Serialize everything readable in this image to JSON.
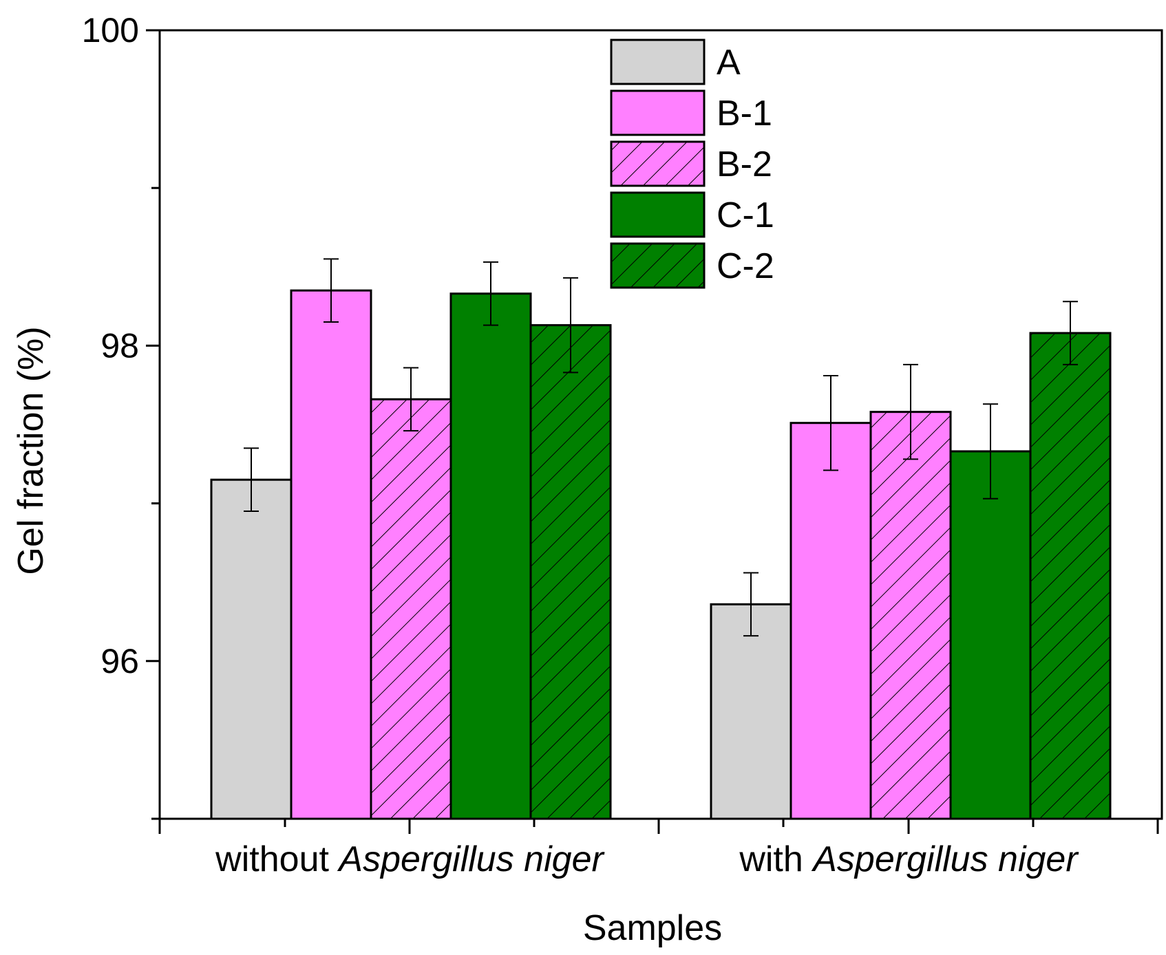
{
  "chart_data": {
    "type": "bar",
    "xlabel": "Samples",
    "ylabel": "Gel fraction (%)",
    "ylim": [
      95,
      100
    ],
    "yticks": [
      96,
      98,
      100
    ],
    "categories": [
      {
        "prefix": "without ",
        "italic": "Aspergillus niger"
      },
      {
        "prefix": "with ",
        "italic": "Aspergillus niger"
      }
    ],
    "legend_position": "top-center",
    "series": [
      {
        "name": "A",
        "color": "#d3d3d3",
        "hatch": false,
        "values": [
          97.15,
          96.36
        ],
        "errors": [
          0.2,
          0.2
        ]
      },
      {
        "name": "B-1",
        "color": "#ff80ff",
        "hatch": false,
        "values": [
          98.35,
          97.51
        ],
        "errors": [
          0.2,
          0.3
        ]
      },
      {
        "name": "B-2",
        "color": "#ff80ff",
        "hatch": true,
        "values": [
          97.66,
          97.58
        ],
        "errors": [
          0.2,
          0.3
        ]
      },
      {
        "name": "C-1",
        "color": "#008000",
        "hatch": false,
        "values": [
          98.33,
          97.33
        ],
        "errors": [
          0.2,
          0.3
        ]
      },
      {
        "name": "C-2",
        "color": "#008000",
        "hatch": true,
        "values": [
          98.13,
          98.08
        ],
        "errors": [
          0.3,
          0.2
        ]
      }
    ]
  }
}
